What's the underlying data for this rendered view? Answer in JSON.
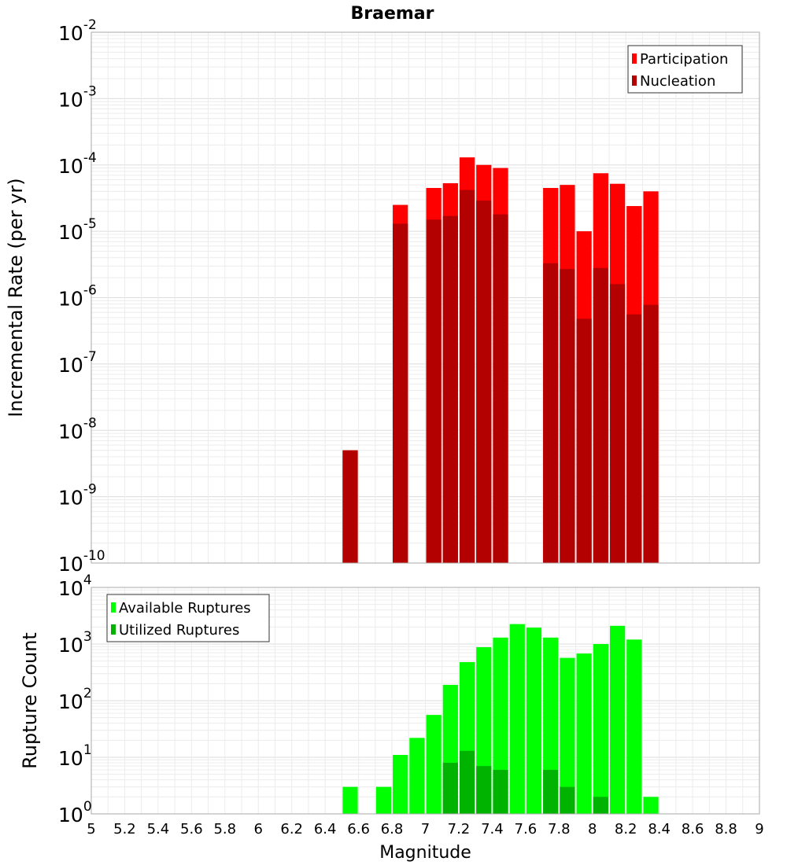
{
  "chart_data": [
    {
      "type": "bar",
      "title": "Braemar",
      "ylabel": "Incremental Rate (per yr)",
      "xlabel": "",
      "yscale": "log",
      "ylim": [
        1e-10,
        0.01
      ],
      "xlim": [
        5,
        9
      ],
      "legend_position": "top-right",
      "grid": true,
      "yticks": [
        {
          "base": "10",
          "exp": "-10"
        },
        {
          "base": "10",
          "exp": "-9"
        },
        {
          "base": "10",
          "exp": "-8"
        },
        {
          "base": "10",
          "exp": "-7"
        },
        {
          "base": "10",
          "exp": "-6"
        },
        {
          "base": "10",
          "exp": "-5"
        },
        {
          "base": "10",
          "exp": "-4"
        },
        {
          "base": "10",
          "exp": "-3"
        },
        {
          "base": "10",
          "exp": "-2"
        }
      ],
      "series": [
        {
          "name": "Participation",
          "color": "#ff0000",
          "x": [
            6.55,
            6.85,
            7.05,
            7.15,
            7.25,
            7.35,
            7.45,
            7.75,
            7.85,
            7.95,
            8.05,
            8.15,
            8.25,
            8.35
          ],
          "values": [
            5e-09,
            2.5e-05,
            4.5e-05,
            5.3e-05,
            0.00013,
            0.0001,
            9e-05,
            4.5e-05,
            5e-05,
            1e-05,
            7.5e-05,
            5.2e-05,
            2.4e-05,
            4e-05
          ]
        },
        {
          "name": "Nucleation",
          "color": "#b30000",
          "x": [
            6.55,
            6.85,
            7.05,
            7.15,
            7.25,
            7.35,
            7.45,
            7.75,
            7.85,
            7.95,
            8.05,
            8.15,
            8.25,
            8.35
          ],
          "values": [
            5e-09,
            1.3e-05,
            1.5e-05,
            1.7e-05,
            4.2e-05,
            2.9e-05,
            1.8e-05,
            3.3e-06,
            2.7e-06,
            4.8e-07,
            2.8e-06,
            1.6e-06,
            5.6e-07,
            7.8e-07
          ]
        }
      ]
    },
    {
      "type": "bar",
      "title": "",
      "ylabel": "Rupture Count",
      "xlabel": "Magnitude",
      "yscale": "log",
      "ylim": [
        1,
        10000
      ],
      "xlim": [
        5,
        9
      ],
      "legend_position": "top-left",
      "grid": true,
      "yticks": [
        {
          "base": "10",
          "exp": "0"
        },
        {
          "base": "10",
          "exp": "1"
        },
        {
          "base": "10",
          "exp": "2"
        },
        {
          "base": "10",
          "exp": "3"
        },
        {
          "base": "10",
          "exp": "4"
        }
      ],
      "xticks": [
        "5",
        "5.2",
        "5.4",
        "5.6",
        "5.8",
        "6",
        "6.2",
        "6.4",
        "6.6",
        "6.8",
        "7",
        "7.2",
        "7.4",
        "7.6",
        "7.8",
        "8",
        "8.2",
        "8.4",
        "8.6",
        "8.8",
        "9"
      ],
      "series": [
        {
          "name": "Available Ruptures",
          "color": "#00ff00",
          "x": [
            6.55,
            6.75,
            6.85,
            6.95,
            7.05,
            7.15,
            7.25,
            7.35,
            7.45,
            7.55,
            7.65,
            7.75,
            7.85,
            7.95,
            8.05,
            8.15,
            8.25,
            8.35
          ],
          "values": [
            3,
            3,
            11,
            22,
            56,
            190,
            480,
            880,
            1300,
            2250,
            1950,
            1300,
            570,
            680,
            1000,
            2100,
            1200,
            2
          ]
        },
        {
          "name": "Utilized Ruptures",
          "color": "#00b300",
          "x": [
            6.55,
            6.75,
            6.85,
            6.95,
            7.05,
            7.15,
            7.25,
            7.35,
            7.45,
            7.55,
            7.65,
            7.75,
            7.85,
            7.95,
            8.05,
            8.15,
            8.25,
            8.35
          ],
          "values": [
            1,
            0,
            1,
            0,
            1,
            8,
            13,
            7,
            6,
            0,
            0,
            6,
            3,
            1,
            2,
            1,
            1,
            1
          ]
        }
      ]
    }
  ]
}
